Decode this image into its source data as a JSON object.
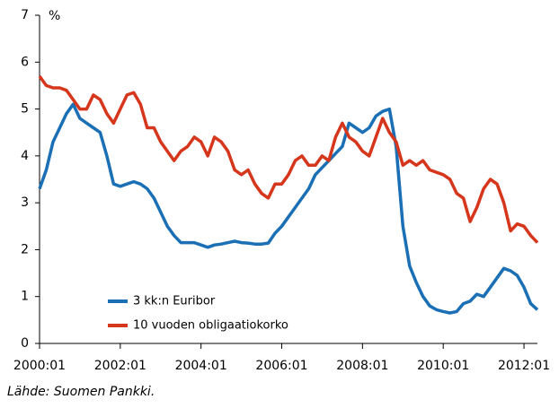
{
  "chart_data": {
    "type": "line",
    "y_label": "%",
    "source": "Lähde: Suomen Pankki.",
    "x": [
      "2000:01",
      "2000:03",
      "2000:05",
      "2000:07",
      "2000:09",
      "2000:11",
      "2001:01",
      "2001:03",
      "2001:05",
      "2001:07",
      "2001:09",
      "2001:11",
      "2002:01",
      "2002:03",
      "2002:05",
      "2002:07",
      "2002:09",
      "2002:11",
      "2003:01",
      "2003:03",
      "2003:05",
      "2003:07",
      "2003:09",
      "2003:11",
      "2004:01",
      "2004:03",
      "2004:05",
      "2004:07",
      "2004:09",
      "2004:11",
      "2005:01",
      "2005:03",
      "2005:05",
      "2005:07",
      "2005:09",
      "2005:11",
      "2006:01",
      "2006:03",
      "2006:05",
      "2006:07",
      "2006:09",
      "2006:11",
      "2007:01",
      "2007:03",
      "2007:05",
      "2007:07",
      "2007:09",
      "2007:11",
      "2008:01",
      "2008:03",
      "2008:05",
      "2008:07",
      "2008:09",
      "2008:11",
      "2009:01",
      "2009:03",
      "2009:05",
      "2009:07",
      "2009:09",
      "2009:11",
      "2010:01",
      "2010:03",
      "2010:05",
      "2010:07",
      "2010:09",
      "2010:11",
      "2011:01",
      "2011:03",
      "2011:05",
      "2011:07",
      "2011:09",
      "2011:11",
      "2012:01",
      "2012:03",
      "2012:05"
    ],
    "series": [
      {
        "name": "3 kk:n Euribor",
        "color": "#1a6fb5",
        "values": [
          3.3,
          3.7,
          4.3,
          4.6,
          4.9,
          5.1,
          4.8,
          4.7,
          4.6,
          4.5,
          4.0,
          3.4,
          3.35,
          3.4,
          3.45,
          3.4,
          3.3,
          3.1,
          2.8,
          2.5,
          2.3,
          2.15,
          2.15,
          2.15,
          2.1,
          2.05,
          2.1,
          2.12,
          2.15,
          2.18,
          2.15,
          2.14,
          2.12,
          2.12,
          2.14,
          2.35,
          2.5,
          2.7,
          2.9,
          3.1,
          3.3,
          3.6,
          3.75,
          3.9,
          4.05,
          4.2,
          4.7,
          4.6,
          4.5,
          4.6,
          4.85,
          4.95,
          5.0,
          4.2,
          2.5,
          1.65,
          1.3,
          1.0,
          0.8,
          0.72,
          0.68,
          0.65,
          0.68,
          0.85,
          0.9,
          1.05,
          1.0,
          1.2,
          1.4,
          1.6,
          1.55,
          1.45,
          1.2,
          0.85,
          0.72
        ]
      },
      {
        "name": "10 vuoden obligaatiokorko",
        "color": "#d6361c",
        "values": [
          5.7,
          5.5,
          5.45,
          5.45,
          5.4,
          5.2,
          5.0,
          5.0,
          5.3,
          5.2,
          4.9,
          4.7,
          5.0,
          5.3,
          5.35,
          5.1,
          4.6,
          4.6,
          4.3,
          4.1,
          3.9,
          4.1,
          4.2,
          4.4,
          4.3,
          4.0,
          4.4,
          4.3,
          4.1,
          3.7,
          3.6,
          3.7,
          3.4,
          3.2,
          3.1,
          3.4,
          3.4,
          3.6,
          3.9,
          4.0,
          3.8,
          3.8,
          4.0,
          3.9,
          4.4,
          4.7,
          4.4,
          4.3,
          4.1,
          4.0,
          4.4,
          4.8,
          4.5,
          4.3,
          3.8,
          3.9,
          3.8,
          3.9,
          3.7,
          3.65,
          3.6,
          3.5,
          3.2,
          3.1,
          2.6,
          2.9,
          3.3,
          3.5,
          3.4,
          3.0,
          2.4,
          2.55,
          2.5,
          2.3,
          2.15
        ]
      }
    ],
    "xlim": [
      "2000:01",
      "2012:05"
    ],
    "xticks": [
      "2000:01",
      "2002:01",
      "2004:01",
      "2006:01",
      "2008:01",
      "2010:01",
      "2012:01"
    ],
    "ylim": [
      0,
      7
    ],
    "yticks": [
      0,
      1,
      2,
      3,
      4,
      5,
      6,
      7
    ]
  }
}
